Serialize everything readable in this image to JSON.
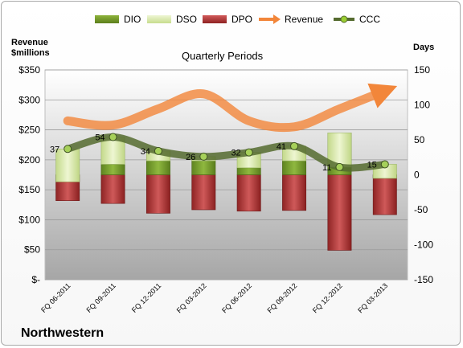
{
  "chart_data": {
    "type": "bar",
    "title": "Quarterly Periods",
    "company": "Northwestern",
    "left_axis_title": [
      "Revenue",
      "$millions"
    ],
    "right_axis_title": "Days",
    "left_ticks": [
      "$-",
      "$50",
      "$100",
      "$150",
      "$200",
      "$250",
      "$300",
      "$350"
    ],
    "left_range": [
      0,
      350
    ],
    "right_ticks": [
      "-150",
      "-100",
      "-50",
      "0",
      "50",
      "100",
      "150"
    ],
    "right_range": [
      -150,
      150
    ],
    "categories": [
      "FQ 06-2011",
      "FQ 09-2011",
      "FQ 12-2011",
      "FQ 03-2012",
      "FQ 06-2012",
      "FQ 09-2012",
      "FQ 12-2012",
      "FQ 03-2013"
    ],
    "series": [
      {
        "name": "DIO",
        "type": "stacked-bar",
        "axis": "right",
        "color": "#6b8e23",
        "values": [
          -10,
          15,
          20,
          20,
          10,
          20,
          60,
          -5
        ]
      },
      {
        "name": "DSO",
        "type": "stacked-bar",
        "axis": "right",
        "color": "#d4e6a1",
        "values": [
          47,
          39,
          14,
          6,
          22,
          21,
          -49,
          20
        ]
      },
      {
        "name": "DPO",
        "type": "negative-bar",
        "axis": "right",
        "color": "#b23a3a",
        "values": [
          -37,
          -41,
          -55,
          -50,
          -52,
          -51,
          -108,
          -57
        ]
      },
      {
        "name": "Revenue",
        "type": "line",
        "axis": "left",
        "color": "#f2863a",
        "values": [
          265,
          258,
          285,
          310,
          265,
          255,
          285,
          315
        ]
      },
      {
        "name": "CCC",
        "type": "line",
        "axis": "right",
        "color": "#556b2f",
        "values": [
          37,
          54,
          34,
          26,
          32,
          41,
          11,
          15
        ]
      }
    ],
    "ccc_labels": [
      "37",
      "54",
      "34",
      "26",
      "32",
      "41",
      "11",
      "15"
    ],
    "grid": true,
    "legend_position": "top"
  }
}
